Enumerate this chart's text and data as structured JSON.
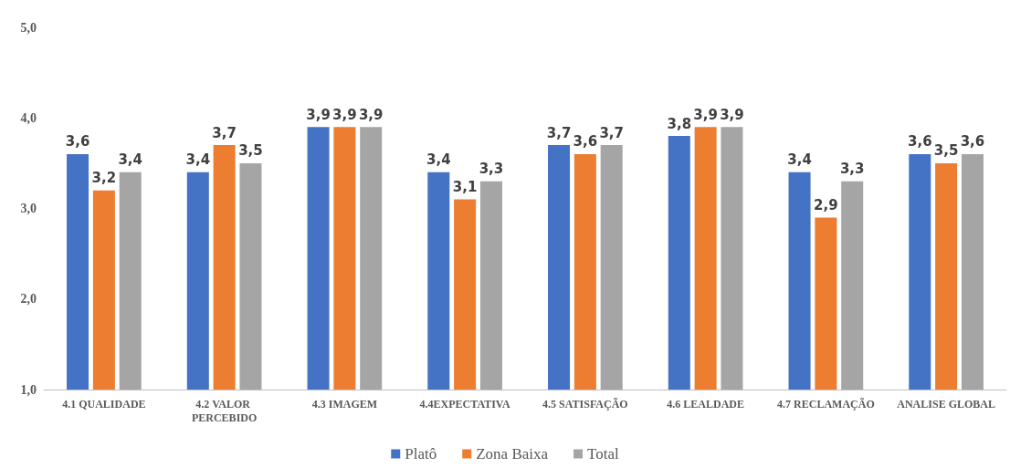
{
  "chart_data": {
    "type": "bar",
    "categories": [
      "4.1 QUALIDADE",
      "4.2 VALOR PERCEBIDO",
      "4.3 IMAGEM",
      "4.4EXPECTATIVA",
      "4.5 SATISFAÇÃO",
      "4.6 LEALDADE",
      "4.7 RECLAMAÇÃO",
      "ANALISE GLOBAL"
    ],
    "series": [
      {
        "name": "Platô",
        "color": "#4472c4",
        "values": [
          3.6,
          3.4,
          3.9,
          3.4,
          3.7,
          3.8,
          3.4,
          3.6
        ],
        "value_labels": [
          "3,6",
          "3,4",
          "3,9",
          "3,4",
          "3,7",
          "3,8",
          "3,4",
          "3,6"
        ]
      },
      {
        "name": "Zona Baixa",
        "color": "#ed7d31",
        "values": [
          3.2,
          3.7,
          3.9,
          3.1,
          3.6,
          3.9,
          2.9,
          3.5
        ],
        "value_labels": [
          "3,2",
          "3,7",
          "3,9",
          "3,1",
          "3,6",
          "3,9",
          "2,9",
          "3,5"
        ]
      },
      {
        "name": "Total",
        "color": "#a5a5a5",
        "values": [
          3.4,
          3.5,
          3.9,
          3.3,
          3.7,
          3.9,
          3.3,
          3.6
        ],
        "value_labels": [
          "3,4",
          "3,5",
          "3,9",
          "3,3",
          "3,7",
          "3,9",
          "3,3",
          "3,6"
        ]
      }
    ],
    "ylim": [
      1,
      5
    ],
    "yticks": [
      {
        "value": 1,
        "label": "1,0"
      },
      {
        "value": 2,
        "label": "2,0"
      },
      {
        "value": 3,
        "label": "3,0"
      },
      {
        "value": 4,
        "label": "4,0"
      },
      {
        "value": 5,
        "label": "5,0"
      }
    ],
    "grid": false,
    "legend": "bottom"
  }
}
